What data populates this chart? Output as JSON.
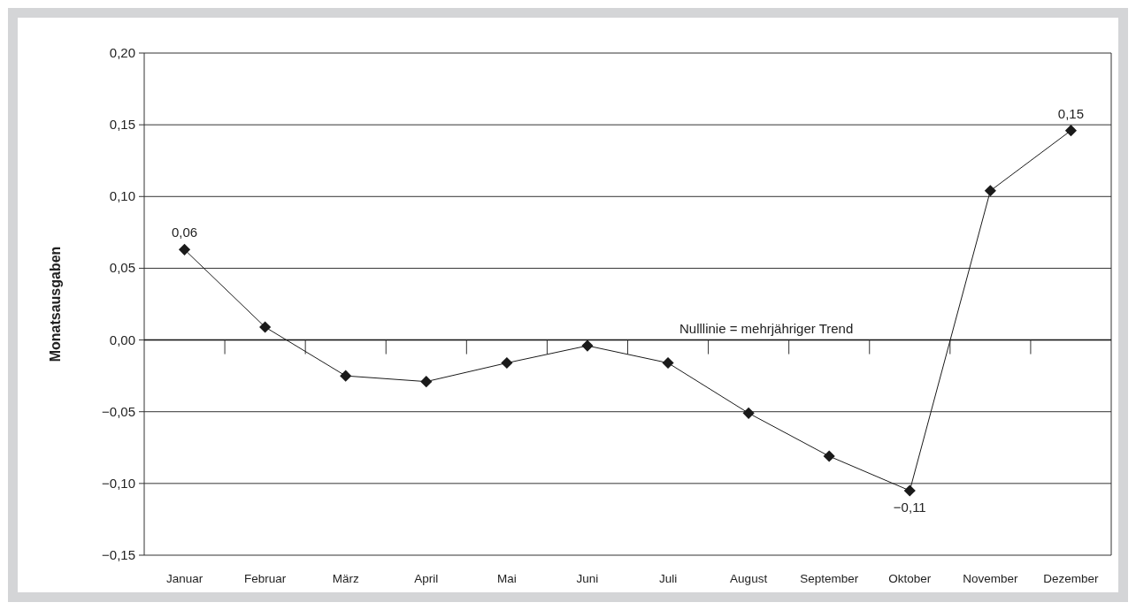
{
  "chart_data": {
    "type": "line",
    "ylabel": "Monatsausgaben",
    "categories": [
      "Januar",
      "Februar",
      "März",
      "April",
      "Mai",
      "Juni",
      "Juli",
      "August",
      "September",
      "Oktober",
      "November",
      "Dezember"
    ],
    "series": [
      {
        "color": "#1a1a1a",
        "values": [
          0.063,
          0.009,
          -0.025,
          -0.029,
          -0.016,
          -0.004,
          -0.016,
          -0.051,
          -0.081,
          -0.105,
          0.104,
          0.146
        ],
        "value_labels": [
          "0,06",
          null,
          null,
          null,
          null,
          null,
          null,
          null,
          null,
          "−0,11",
          null,
          "0,15"
        ]
      }
    ],
    "ylim": [
      -0.15,
      0.2
    ],
    "yticks": [
      {
        "value": -0.15,
        "label": "−0,15"
      },
      {
        "value": -0.1,
        "label": "−0,10"
      },
      {
        "value": -0.05,
        "label": "−0,05"
      },
      {
        "value": 0,
        "label": "0,00"
      },
      {
        "value": 0.05,
        "label": "0,05"
      },
      {
        "value": 0.1,
        "label": "0,10"
      },
      {
        "value": 0.15,
        "label": "0,15"
      },
      {
        "value": 0.2,
        "label": "0,20"
      }
    ],
    "grid": "y",
    "marker": "diamond",
    "line_style": "solid",
    "ref_lines": [
      {
        "axis": "y",
        "value": 0,
        "label": "Nulllinie = mehrjähriger Trend"
      }
    ]
  }
}
